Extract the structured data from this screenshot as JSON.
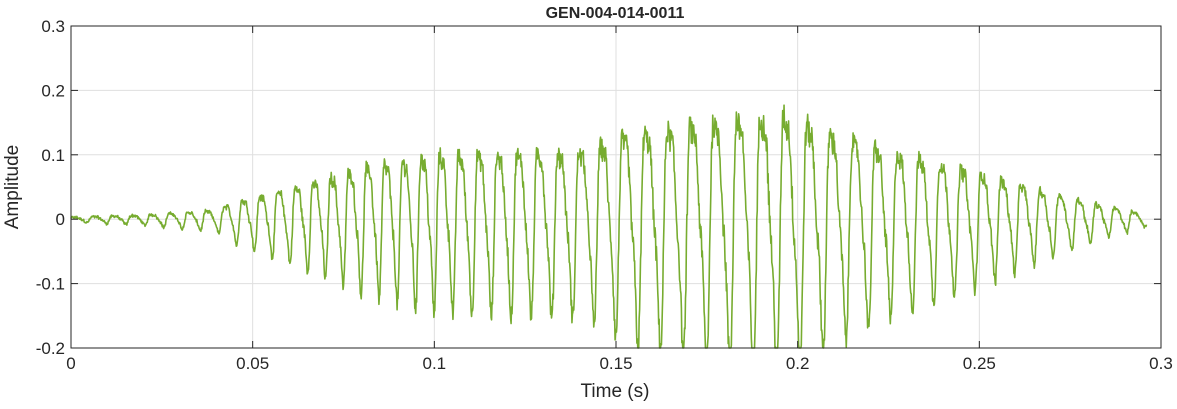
{
  "chart_data": {
    "type": "line",
    "title": "GEN-004-014-0011",
    "xlabel": "Time (s)",
    "ylabel": "Amplitude",
    "xlim": [
      0,
      0.3
    ],
    "ylim": [
      -0.2,
      0.3
    ],
    "xticks": [
      0,
      0.05,
      0.1,
      0.15,
      0.2,
      0.25,
      0.3
    ],
    "xtick_labels": [
      "0",
      "0.05",
      "0.1",
      "0.15",
      "0.2",
      "0.25",
      "0.3"
    ],
    "yticks": [
      -0.2,
      -0.1,
      0,
      0.1,
      0.2,
      0.3
    ],
    "ytick_labels": [
      "-0.2",
      "-0.1",
      "0",
      "0.1",
      "0.2",
      "0.3"
    ],
    "grid": true,
    "legend": "none",
    "line_color": "#77AC30",
    "series": [
      {
        "sample_rate_hz": 8000,
        "duration_s": 0.296,
        "envelope": {
          "t": [
            0,
            0.02,
            0.04,
            0.045,
            0.06,
            0.08,
            0.1,
            0.12,
            0.14,
            0.155,
            0.17,
            0.185,
            0.195,
            0.21,
            0.23,
            0.25,
            0.27,
            0.285,
            0.296
          ],
          "amp": [
            0.004,
            0.01,
            0.02,
            0.04,
            0.07,
            0.12,
            0.15,
            0.155,
            0.16,
            0.2,
            0.22,
            0.24,
            0.25,
            0.2,
            0.15,
            0.11,
            0.06,
            0.03,
            0.012
          ]
        },
        "carrier_frequency_hz": 180
      }
    ]
  }
}
